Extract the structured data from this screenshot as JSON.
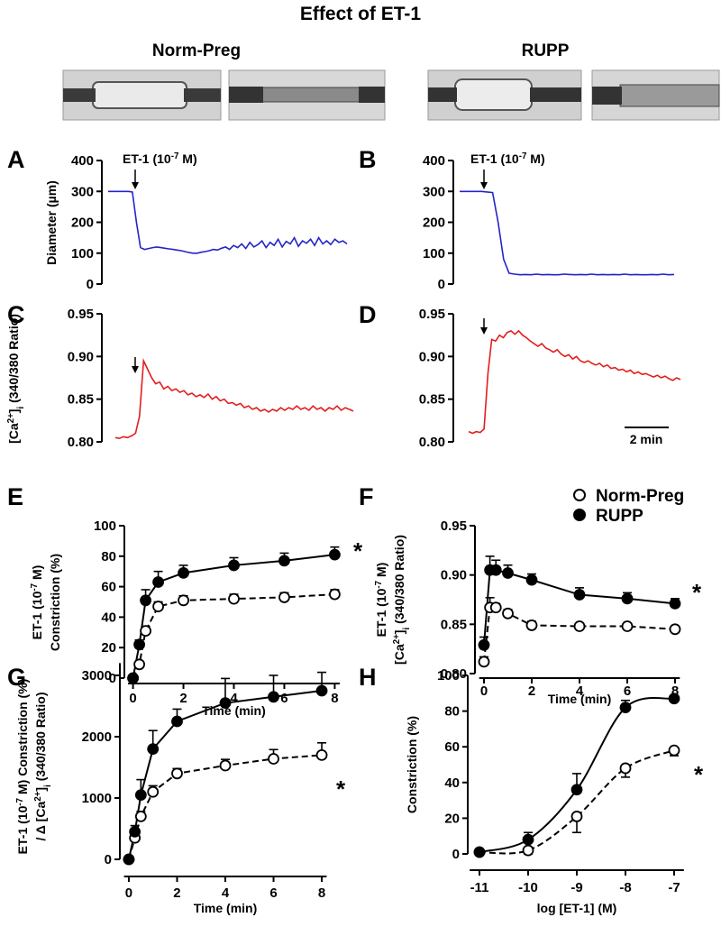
{
  "title": "Effect of ET-1",
  "column_titles": [
    "Norm-Preg",
    "RUPP"
  ],
  "chart_data": [
    {
      "type": "line",
      "panel": "A",
      "ylabel": [
        [
          "Diameter (µm)"
        ]
      ],
      "annotation": [
        "ET-1 (10",
        "-7",
        " M)"
      ],
      "ylim": [
        0,
        400
      ],
      "yticks": [
        0,
        100,
        200,
        300,
        400
      ],
      "series": [
        {
          "color": "#2424c8",
          "values": [
            300,
            300,
            300,
            300,
            300,
            300,
            298,
            200,
            118,
            112,
            115,
            118,
            120,
            118,
            116,
            114,
            112,
            110,
            108,
            105,
            102,
            100,
            100,
            103,
            105,
            108,
            112,
            110,
            116,
            120,
            112,
            125,
            118,
            130,
            115,
            135,
            120,
            128,
            140,
            118,
            135,
            125,
            145,
            120,
            138,
            130,
            150,
            122,
            140,
            132,
            145,
            125,
            150,
            130,
            140,
            128,
            145,
            135,
            140,
            130
          ]
        }
      ]
    },
    {
      "type": "line",
      "panel": "B",
      "annotation": [
        "ET-1 (10",
        "-7",
        " M)"
      ],
      "ylim": [
        0,
        400
      ],
      "yticks": [
        0,
        100,
        200,
        300,
        400
      ],
      "series": [
        {
          "color": "#2424c8",
          "values": [
            300,
            300,
            300,
            300,
            300,
            298,
            296,
            200,
            80,
            35,
            32,
            30,
            31,
            30,
            32,
            30,
            31,
            30,
            30,
            32,
            31,
            30,
            31,
            30,
            32,
            30,
            31,
            30,
            31,
            30,
            32,
            30,
            31,
            30,
            30,
            31,
            30,
            32,
            30,
            31
          ]
        }
      ]
    },
    {
      "type": "line",
      "panel": "C",
      "ylabel": [
        [
          "[Ca",
          "2+",
          "]",
          "i",
          " (340/380 Ratio)"
        ]
      ],
      "ylim": [
        0.8,
        0.95
      ],
      "yticks": [
        {
          "value": 0.8,
          "label": "0.80"
        },
        0.85,
        {
          "value": 0.9,
          "label": "0.90"
        },
        0.95
      ],
      "series": [
        {
          "color": "#e21d1d",
          "values": [
            0.805,
            0.804,
            0.806,
            0.805,
            0.807,
            0.81,
            0.83,
            0.895,
            0.885,
            0.875,
            0.868,
            0.87,
            0.862,
            0.865,
            0.86,
            0.862,
            0.858,
            0.86,
            0.855,
            0.857,
            0.853,
            0.855,
            0.852,
            0.856,
            0.85,
            0.853,
            0.848,
            0.85,
            0.845,
            0.846,
            0.843,
            0.845,
            0.84,
            0.842,
            0.838,
            0.84,
            0.836,
            0.838,
            0.835,
            0.838,
            0.836,
            0.84,
            0.837,
            0.84,
            0.838,
            0.842,
            0.838,
            0.84,
            0.837,
            0.842,
            0.838,
            0.84,
            0.836,
            0.84,
            0.838,
            0.842,
            0.837,
            0.84,
            0.838,
            0.836
          ]
        }
      ]
    },
    {
      "type": "line",
      "panel": "D",
      "scale_bar": "2 min",
      "ylim": [
        0.8,
        0.95
      ],
      "yticks": [
        {
          "value": 0.8,
          "label": "0.80"
        },
        0.85,
        {
          "value": 0.9,
          "label": "0.90"
        },
        0.95
      ],
      "series": [
        {
          "color": "#e21d1d",
          "values": [
            0.812,
            0.81,
            0.812,
            0.811,
            0.815,
            0.88,
            0.92,
            0.918,
            0.925,
            0.922,
            0.928,
            0.93,
            0.926,
            0.93,
            0.925,
            0.922,
            0.918,
            0.915,
            0.912,
            0.915,
            0.91,
            0.908,
            0.905,
            0.908,
            0.903,
            0.9,
            0.902,
            0.897,
            0.9,
            0.895,
            0.893,
            0.895,
            0.892,
            0.89,
            0.892,
            0.888,
            0.89,
            0.886,
            0.887,
            0.884,
            0.885,
            0.882,
            0.884,
            0.88,
            0.882,
            0.879,
            0.88,
            0.878,
            0.876,
            0.878,
            0.875,
            0.877,
            0.874,
            0.872,
            0.875,
            0.873
          ]
        }
      ]
    },
    {
      "type": "scatter",
      "panel": "E",
      "ylabel": [
        [
          "ET-1 (10",
          "-7",
          " M)"
        ],
        [
          "Constriction (%)"
        ]
      ],
      "xlabel": "Time (min)",
      "annotation": "*",
      "xlim": [
        -0.2,
        8.2
      ],
      "xticks": [
        0,
        2,
        4,
        6,
        8
      ],
      "ylim": [
        0,
        100
      ],
      "yticks": [
        0,
        20,
        40,
        60,
        80,
        100
      ],
      "x": [
        0,
        0.25,
        0.5,
        1,
        2,
        4,
        6,
        8
      ],
      "series": [
        {
          "color": "#000000",
          "marker": "open",
          "dashed": true,
          "error_side": "up",
          "values": [
            0,
            9,
            31,
            47,
            51,
            52,
            53,
            55
          ],
          "errors": [
            0,
            2,
            3,
            3,
            3,
            3,
            3,
            3
          ]
        },
        {
          "color": "#000000",
          "marker": "filled",
          "dashed": false,
          "error_side": "up",
          "values": [
            0,
            22,
            51,
            63,
            69,
            74,
            77,
            81
          ],
          "errors": [
            0,
            3,
            7,
            7,
            5,
            5,
            5,
            5
          ]
        }
      ]
    },
    {
      "type": "scatter",
      "panel": "F",
      "ylabel": [
        [
          "ET-1 (10",
          "-7",
          " M)"
        ],
        [
          "[Ca",
          "2+",
          "]",
          "i",
          " (340/380 Ratio)"
        ]
      ],
      "xlabel": "Time (min)",
      "annotation": "*",
      "legend": "top-right",
      "xlim": [
        -0.2,
        8.2
      ],
      "xticks": [
        0,
        2,
        4,
        6,
        8
      ],
      "ylim": [
        0.8,
        0.95
      ],
      "yticks": [
        {
          "value": 0.8,
          "label": "0.80"
        },
        0.85,
        {
          "value": 0.9,
          "label": "0.90"
        },
        0.95
      ],
      "x": [
        0,
        0.25,
        0.5,
        1,
        2,
        4,
        6,
        8
      ],
      "series": [
        {
          "name": "Norm-Preg",
          "color": "#000000",
          "marker": "open",
          "dashed": true,
          "error_side": "up",
          "values": [
            0.812,
            0.867,
            0.867,
            0.861,
            0.849,
            0.848,
            0.848,
            0.845
          ],
          "errors": [
            0.005,
            0.01,
            0.004,
            0.004,
            0.004,
            0.003,
            0.003,
            0.003
          ]
        },
        {
          "name": "RUPP",
          "color": "#000000",
          "marker": "filled",
          "dashed": false,
          "error_side": "up",
          "values": [
            0.829,
            0.905,
            0.905,
            0.902,
            0.895,
            0.88,
            0.876,
            0.871
          ],
          "errors": [
            0.008,
            0.014,
            0.01,
            0.008,
            0.006,
            0.007,
            0.006,
            0.005
          ]
        }
      ]
    },
    {
      "type": "scatter",
      "panel": "G",
      "ylabel": [
        [
          "ET-1 (10",
          "-7",
          " M) Constriction (%)"
        ],
        [
          "/ Δ [Ca",
          "2+",
          "]",
          "i",
          " (340/380 Ratio)"
        ]
      ],
      "xlabel": "Time (min)",
      "annotation": "*",
      "xlim": [
        -0.2,
        8.2
      ],
      "xticks": [
        0,
        2,
        4,
        6,
        8
      ],
      "ylim": [
        0,
        3200
      ],
      "yticks": [
        0,
        1000,
        2000,
        3000
      ],
      "x": [
        0,
        0.25,
        0.5,
        1,
        2,
        4,
        6,
        8
      ],
      "series": [
        {
          "color": "#000000",
          "marker": "open",
          "dashed": true,
          "error_side": "up",
          "values": [
            0,
            350,
            700,
            1100,
            1400,
            1530,
            1640,
            1700
          ],
          "errors": [
            0,
            60,
            80,
            100,
            80,
            100,
            150,
            200
          ]
        },
        {
          "color": "#000000",
          "marker": "filled",
          "dashed": false,
          "error_side": "up",
          "values": [
            0,
            450,
            1050,
            1800,
            2250,
            2550,
            2650,
            2750
          ],
          "errors": [
            0,
            100,
            250,
            300,
            200,
            400,
            350,
            300
          ]
        }
      ]
    },
    {
      "type": "scatter",
      "panel": "H",
      "ylabel": [
        [
          "Constriction (%)"
        ]
      ],
      "xlabel": "log [ET-1] (M)",
      "annotation": "*",
      "smooth": true,
      "xlim": [
        -11.2,
        -6.8
      ],
      "xticks": [
        -11,
        -10,
        -9,
        -8,
        -7
      ],
      "ylim": [
        0,
        100
      ],
      "yticks": [
        0,
        20,
        40,
        60,
        80,
        100
      ],
      "x": [
        -11,
        -10,
        -9,
        -8,
        -7
      ],
      "series": [
        {
          "color": "#000000",
          "marker": "open",
          "dashed": true,
          "error_side": "down",
          "values": [
            1,
            2,
            21,
            48,
            58
          ],
          "errors": [
            1,
            2,
            9,
            5,
            3
          ]
        },
        {
          "color": "#000000",
          "marker": "filled",
          "dashed": false,
          "error_side": "up",
          "values": [
            1,
            8,
            36,
            82,
            87
          ],
          "errors": [
            1,
            4,
            9,
            4,
            1
          ]
        }
      ]
    }
  ]
}
